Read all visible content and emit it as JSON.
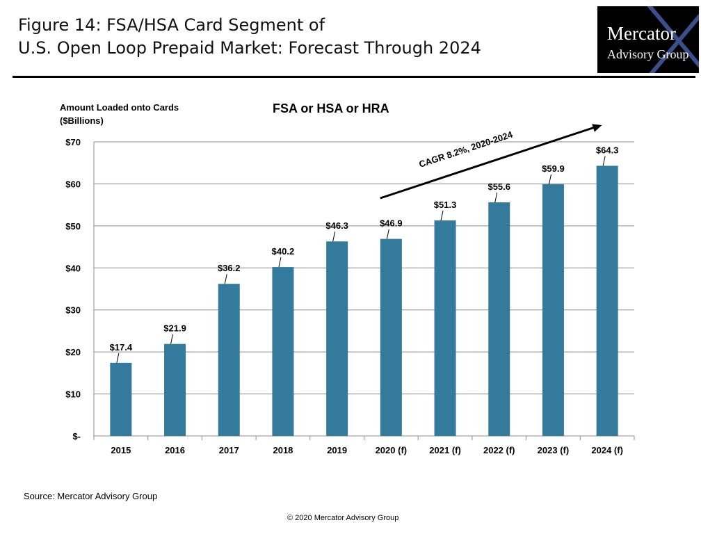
{
  "figure": {
    "title_line1": "Figure 14: FSA/HSA Card Segment of",
    "title_line2": "U.S. Open Loop Prepaid Market: Forecast Through 2024"
  },
  "logo": {
    "line1": "Mercator",
    "line2": "Advisory Group"
  },
  "source": "Source: Mercator Advisory Group",
  "copyright": "© 2020 Mercator Advisory Group",
  "colors": {
    "bar": "#337a9c",
    "grid": "#8c8c8c",
    "arrow": "#000000"
  },
  "chart_data": {
    "type": "bar",
    "title": "FSA or HSA or HRA",
    "ylabel_line1": "Amount Loaded onto Cards",
    "ylabel_line2": "($Billions)",
    "xlabel": "",
    "categories": [
      "2015",
      "2016",
      "2017",
      "2018",
      "2019",
      "2020 (f)",
      "2021 (f)",
      "2022 (f)",
      "2023 (f)",
      "2024 (f)"
    ],
    "values": [
      17.4,
      21.9,
      36.2,
      40.2,
      46.3,
      46.9,
      51.3,
      55.6,
      59.9,
      64.3
    ],
    "data_labels": [
      "$17.4",
      "$21.9",
      "$36.2",
      "$40.2",
      "$46.3",
      "$46.9",
      "$51.3",
      "$55.6",
      "$59.9",
      "$64.3"
    ],
    "ylim": [
      0,
      70
    ],
    "yticks": [
      0,
      10,
      20,
      30,
      40,
      50,
      60,
      70
    ],
    "ytick_labels": [
      "$-",
      "$10",
      "$20",
      "$30",
      "$40",
      "$50",
      "$60",
      "$70"
    ],
    "grid": true,
    "legend": "none",
    "annotation": {
      "text": "CAGR 8.2%, 2020-2024",
      "arrow_direction": "up-right"
    }
  }
}
